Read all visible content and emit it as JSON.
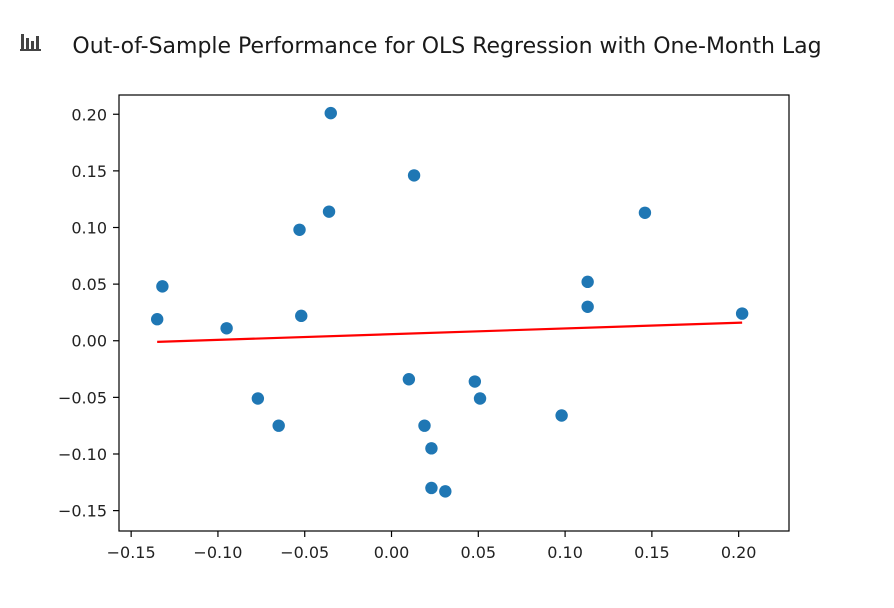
{
  "chart_data": {
    "type": "scatter",
    "title": "Out-of-Sample Performance for OLS Regression with One-Month Lag",
    "xlabel": "",
    "ylabel": "",
    "xlim": [
      -0.157,
      0.229
    ],
    "ylim": [
      -0.168,
      0.217
    ],
    "grid": false,
    "x_ticks": [
      -0.15,
      -0.1,
      -0.05,
      0.0,
      0.05,
      0.1,
      0.15,
      0.2
    ],
    "x_tick_labels": [
      "−0.15",
      "−0.10",
      "−0.05",
      "0.00",
      "0.05",
      "0.10",
      "0.15",
      "0.20"
    ],
    "y_ticks": [
      0.2,
      0.15,
      0.1,
      0.05,
      0.0,
      -0.05,
      -0.1,
      -0.15
    ],
    "y_tick_labels": [
      "0.20",
      "0.15",
      "0.10",
      "0.05",
      "0.00",
      "−0.05",
      "−0.10",
      "−0.15"
    ],
    "series": [
      {
        "kind": "scatter",
        "color": "#1f77b4",
        "points": [
          [
            -0.135,
            0.019
          ],
          [
            -0.132,
            0.048
          ],
          [
            -0.095,
            0.011
          ],
          [
            -0.077,
            -0.051
          ],
          [
            -0.065,
            -0.075
          ],
          [
            -0.053,
            0.098
          ],
          [
            -0.052,
            0.022
          ],
          [
            -0.036,
            0.114
          ],
          [
            -0.035,
            0.201
          ],
          [
            0.01,
            -0.034
          ],
          [
            0.013,
            0.146
          ],
          [
            0.019,
            -0.075
          ],
          [
            0.023,
            -0.095
          ],
          [
            0.023,
            -0.13
          ],
          [
            0.031,
            -0.133
          ],
          [
            0.048,
            -0.036
          ],
          [
            0.051,
            -0.051
          ],
          [
            0.098,
            -0.066
          ],
          [
            0.113,
            0.052
          ],
          [
            0.113,
            0.03
          ],
          [
            0.146,
            0.113
          ],
          [
            0.202,
            0.024
          ]
        ]
      },
      {
        "kind": "line",
        "color": "#ff0000",
        "points": [
          [
            -0.135,
            -0.001
          ],
          [
            0.202,
            0.016
          ]
        ]
      }
    ]
  }
}
